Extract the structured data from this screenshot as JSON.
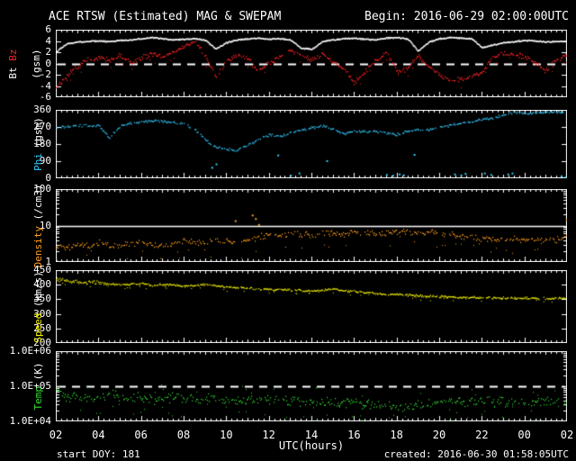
{
  "window": {
    "title_left": "ACE RTSW (Estimated) MAG & SWEPAM",
    "title_right": "Begin: 2016-06-29 02:00:00UTC"
  },
  "footer": {
    "left": "start DOY: 181",
    "right": "created: 2016-06-30 01:58:05UTC"
  },
  "x_axis": {
    "label": "UTC(hours)",
    "tick_labels": [
      "02",
      "04",
      "06",
      "08",
      "10",
      "12",
      "14",
      "16",
      "18",
      "20",
      "22",
      "00",
      "02"
    ]
  },
  "colors": {
    "background": "#000000",
    "frame": "#ffffff",
    "bt": "#ffffff",
    "bz": "#ff2222",
    "phi": "#33ccff",
    "density": "#ffa020",
    "speed": "#ffff00",
    "temp": "#33dd33"
  },
  "chart_data": {
    "type": "scatter",
    "title": "ACE RTSW (Estimated) MAG & SWEPAM",
    "begin": "2016-06-29 02:00:00UTC",
    "xlabel": "UTC(hours)",
    "x_range_hours": [
      2,
      26
    ],
    "x_major_tick_every_hours": 2,
    "x_hours": [
      2,
      2.5,
      3,
      3.5,
      4,
      4.5,
      5,
      5.5,
      6,
      6.5,
      7,
      7.5,
      8,
      8.5,
      9,
      9.5,
      10,
      10.5,
      11,
      11.5,
      12,
      12.5,
      13,
      13.5,
      14,
      14.5,
      15,
      15.5,
      16,
      16.5,
      17,
      17.5,
      18,
      18.5,
      19,
      19.5,
      20,
      20.5,
      21,
      21.5,
      22,
      22.5,
      23,
      23.5,
      24,
      24.5,
      25,
      25.5,
      26
    ],
    "panels": [
      {
        "id": "mag",
        "ylabel_parts": [
          {
            "text": "Bt",
            "color": "#ffffff"
          },
          {
            "text": "Bz",
            "color": "#ff2222"
          }
        ],
        "unit": "(gsm)",
        "two_column_label": true,
        "scale": "linear",
        "ylim": [
          -6,
          6
        ],
        "yticks": [
          {
            "v": 6,
            "label": "6"
          },
          {
            "v": 4,
            "label": "4"
          },
          {
            "v": 2,
            "label": "2"
          },
          {
            "v": 0,
            "label": "0"
          },
          {
            "v": -2,
            "label": "-2"
          },
          {
            "v": -4,
            "label": "-4"
          },
          {
            "v": -6,
            "label": "-6"
          }
        ],
        "ref_lines": [
          {
            "y": 0,
            "style": "dashed"
          }
        ],
        "series": [
          {
            "name": "Bt",
            "color": "#ffffff",
            "values": [
              2.2,
              3.6,
              3.9,
              4.0,
              4.1,
              4.0,
              4.2,
              4.3,
              4.5,
              4.7,
              4.5,
              4.3,
              4.4,
              4.5,
              4.2,
              2.7,
              3.8,
              4.3,
              4.5,
              4.6,
              4.4,
              4.5,
              4.3,
              2.8,
              2.6,
              4.0,
              4.3,
              4.5,
              4.6,
              4.4,
              4.3,
              4.6,
              4.7,
              4.5,
              2.3,
              3.9,
              4.5,
              4.7,
              4.6,
              4.5,
              2.9,
              3.4,
              3.8,
              4.0,
              4.2,
              4.1,
              3.9,
              4.0,
              4.0
            ]
          },
          {
            "name": "Bz",
            "color": "#ff2222",
            "values": [
              -4.0,
              -2.2,
              -0.5,
              0.8,
              1.2,
              0.6,
              1.5,
              0.2,
              1.0,
              1.8,
              1.2,
              2.2,
              3.0,
              4.0,
              1.5,
              -2.5,
              0.5,
              1.5,
              1.0,
              -1.5,
              0.2,
              1.2,
              2.5,
              1.5,
              0.8,
              1.8,
              0.5,
              -0.8,
              -3.5,
              -1.2,
              0.5,
              2.0,
              -1.3,
              -0.8,
              1.5,
              -0.5,
              -2.0,
              -3.0,
              -2.6,
              -2.4,
              -1.5,
              1.3,
              1.8,
              1.6,
              1.4,
              0.2,
              -1.3,
              0.8,
              1.8
            ]
          }
        ]
      },
      {
        "id": "phi",
        "ylabel_parts": [
          {
            "text": "Phi",
            "color": "#33ccff"
          }
        ],
        "unit": "(gsm)",
        "two_column_label": false,
        "scale": "linear",
        "ylim": [
          0,
          360
        ],
        "yticks": [
          {
            "v": 360,
            "label": "360"
          },
          {
            "v": 270,
            "label": "270"
          },
          {
            "v": 180,
            "label": "180"
          },
          {
            "v": 90,
            "label": "90"
          },
          {
            "v": 0,
            "label": "0"
          }
        ],
        "ref_lines": [],
        "series": [
          {
            "name": "Phi",
            "color": "#33ccff",
            "values": [
              270,
              274,
              278,
              280,
              278,
              215,
              278,
              292,
              300,
              306,
              302,
              295,
              288,
              262,
              205,
              165,
              155,
              150,
              180,
              205,
              230,
              222,
              242,
              254,
              268,
              278,
              262,
              235,
              250,
              247,
              251,
              241,
              233,
              251,
              261,
              254,
              271,
              281,
              291,
              299,
              311,
              321,
              337,
              347,
              343,
              349,
              351,
              350,
              352
            ]
          },
          {
            "name": "Phi scattered low",
            "color": "#33ccff",
            "points": [
              [
                9.3,
                60
              ],
              [
                9.5,
                78
              ],
              [
                12.4,
                125
              ],
              [
                13.0,
                18
              ],
              [
                13.4,
                30
              ],
              [
                14.7,
                95
              ],
              [
                17.5,
                22
              ],
              [
                17.8,
                18
              ],
              [
                18.1,
                25
              ],
              [
                18.3,
                20
              ],
              [
                18.8,
                128
              ],
              [
                20.7,
                25
              ],
              [
                21.0,
                20
              ],
              [
                21.2,
                28
              ],
              [
                22.1,
                30
              ],
              [
                22.4,
                22
              ],
              [
                23.2,
                25
              ],
              [
                23.4,
                30
              ],
              [
                25.7,
                15
              ],
              [
                25.9,
                10
              ],
              [
                26.0,
                25
              ]
            ]
          }
        ]
      },
      {
        "id": "density",
        "ylabel_parts": [
          {
            "text": "Density",
            "color": "#ffa020"
          }
        ],
        "unit": "(/cm3)",
        "two_column_label": false,
        "scale": "log",
        "ylim": [
          1,
          100
        ],
        "yticks": [
          {
            "v": 100,
            "label": "100"
          },
          {
            "v": 10,
            "label": "10"
          },
          {
            "v": 1,
            "label": "1"
          }
        ],
        "ref_lines": [
          {
            "y": 10,
            "style": "solid"
          }
        ],
        "series": [
          {
            "name": "Density",
            "color": "#ffa020",
            "values": [
              3.0,
              2.6,
              3.1,
              2.8,
              3.4,
              3.0,
              2.7,
              3.3,
              3.7,
              3.2,
              2.9,
              3.4,
              3.9,
              3.6,
              3.3,
              4.1,
              3.8,
              3.6,
              4.4,
              4.9,
              5.8,
              5.4,
              6.3,
              5.9,
              5.6,
              6.1,
              6.6,
              6.0,
              6.9,
              6.4,
              5.9,
              6.3,
              6.7,
              7.1,
              6.6,
              6.9,
              6.3,
              5.9,
              5.3,
              4.9,
              4.6,
              4.3,
              4.6,
              4.4,
              4.1,
              4.4,
              4.2,
              4.3,
              4.5
            ]
          },
          {
            "name": "Density spikes",
            "color": "#ffa020",
            "points": [
              [
                10.4,
                14
              ],
              [
                11.2,
                20
              ],
              [
                11.35,
                16
              ],
              [
                11.5,
                11
              ],
              [
                25.95,
                15
              ]
            ]
          }
        ]
      },
      {
        "id": "speed",
        "ylabel_parts": [
          {
            "text": "Speed",
            "color": "#ffff00"
          }
        ],
        "unit": "(km/s)",
        "two_column_label": false,
        "scale": "linear",
        "ylim": [
          200,
          450
        ],
        "yticks": [
          {
            "v": 450,
            "label": "450"
          },
          {
            "v": 400,
            "label": "400"
          },
          {
            "v": 350,
            "label": "350"
          },
          {
            "v": 300,
            "label": "300"
          },
          {
            "v": 250,
            "label": "250"
          },
          {
            "v": 200,
            "label": "200"
          }
        ],
        "ref_lines": [],
        "series": [
          {
            "name": "Speed",
            "color": "#ffff00",
            "values": [
              422,
              416,
              412,
              410,
              407,
              404,
              401,
              403,
              406,
              399,
              402,
              400,
              397,
              399,
              402,
              397,
              394,
              391,
              389,
              387,
              386,
              385,
              383,
              382,
              380,
              383,
              386,
              382,
              378,
              375,
              372,
              370,
              368,
              366,
              364,
              362,
              361,
              360,
              358,
              358,
              357,
              356,
              356,
              355,
              356,
              355,
              354,
              355,
              356
            ]
          }
        ]
      },
      {
        "id": "temp",
        "ylabel_parts": [
          {
            "text": "Temp",
            "color": "#33dd33"
          }
        ],
        "unit": "(K)",
        "two_column_label": false,
        "scale": "log",
        "ylim": [
          10000,
          1000000
        ],
        "yticks": [
          {
            "v": 1000000,
            "label": "1.0E+06"
          },
          {
            "v": 100000,
            "label": "1.0E+05"
          },
          {
            "v": 10000,
            "label": "1.0E+04"
          }
        ],
        "ref_lines": [
          {
            "y": 100000,
            "style": "dashed"
          }
        ],
        "series": [
          {
            "name": "Temp",
            "color": "#33dd33",
            "values": [
              90000,
              52000,
              46000,
              50000,
              42000,
              60000,
              50000,
              45000,
              55000,
              42000,
              43000,
              50000,
              46000,
              39000,
              43000,
              47000,
              41000,
              36000,
              45000,
              43000,
              39000,
              44000,
              41000,
              37000,
              39000,
              36000,
              33000,
              36000,
              34000,
              31000,
              29000,
              32000,
              27000,
              25000,
              29000,
              31000,
              34000,
              38000,
              36000,
              40000,
              38000,
              35000,
              39000,
              37000,
              35000,
              37000,
              36000,
              38000,
              40000
            ]
          }
        ]
      }
    ]
  }
}
